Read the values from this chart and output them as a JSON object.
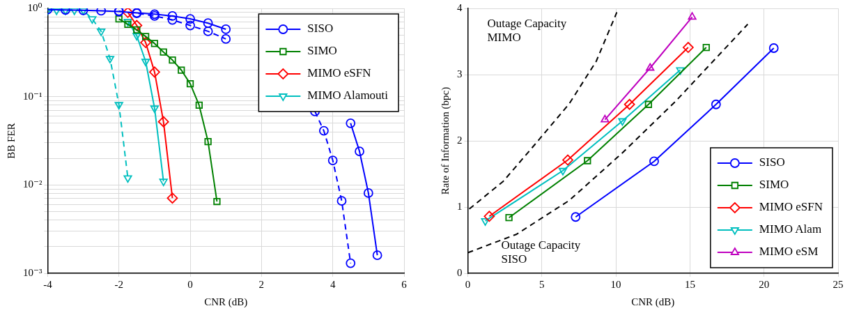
{
  "chart_data": [
    {
      "type": "line",
      "xlabel": "CNR (dB)",
      "ylabel": "BB FER",
      "log": "y",
      "grid": true,
      "legend": "top right",
      "xlim": [
        -4,
        6
      ],
      "ylim": [
        0.001,
        1
      ],
      "xticks": [
        -4,
        -2,
        0,
        2,
        4,
        6
      ],
      "yticks": [
        {
          "value": 0.001,
          "label": "10⁻³"
        },
        {
          "value": 0.002,
          "label": null
        },
        {
          "value": 0.003,
          "label": null
        },
        {
          "value": 0.004,
          "label": null
        },
        {
          "value": 0.005,
          "label": null
        },
        {
          "value": 0.006,
          "label": null
        },
        {
          "value": 0.007,
          "label": null
        },
        {
          "value": 0.008,
          "label": null
        },
        {
          "value": 0.009,
          "label": null
        },
        {
          "value": 0.01,
          "label": "10⁻²"
        },
        {
          "value": 0.02,
          "label": null
        },
        {
          "value": 0.03,
          "label": null
        },
        {
          "value": 0.04,
          "label": null
        },
        {
          "value": 0.05,
          "label": null
        },
        {
          "value": 0.06,
          "label": null
        },
        {
          "value": 0.07,
          "label": null
        },
        {
          "value": 0.08,
          "label": null
        },
        {
          "value": 0.09,
          "label": null
        },
        {
          "value": 0.1,
          "label": "10⁻¹"
        },
        {
          "value": 0.2,
          "label": null
        },
        {
          "value": 0.3,
          "label": null
        },
        {
          "value": 0.4,
          "label": null
        },
        {
          "value": 0.5,
          "label": null
        },
        {
          "value": 0.6,
          "label": null
        },
        {
          "value": 0.7,
          "label": null
        },
        {
          "value": 0.8,
          "label": null
        },
        {
          "value": 0.9,
          "label": null
        },
        {
          "value": 1,
          "label": "10⁰"
        }
      ],
      "series": [
        {
          "name": "SISO",
          "color": "#0000ff",
          "marker": "circle",
          "line_style": "solid",
          "x": [
            -4,
            -3.5,
            -3,
            -2.5,
            -2,
            -1.5,
            -1,
            -0.5,
            0,
            0.5,
            1,
            2,
            4.5,
            4.75,
            5,
            5.25
          ],
          "values": [
            0.97,
            0.96,
            0.95,
            0.94,
            0.92,
            0.89,
            0.86,
            0.82,
            0.76,
            0.68,
            0.58,
            null,
            0.05,
            0.024,
            0.0081,
            0.0016
          ]
        },
        {
          "name": "SIMO",
          "color": "#008000",
          "marker": "square",
          "line_style": "solid",
          "x": [
            -2,
            -1.75,
            -1.5,
            -1.25,
            -1,
            -0.75,
            -0.5,
            -0.25,
            0,
            0.25,
            0.5,
            0.75
          ],
          "values": [
            0.76,
            0.66,
            0.57,
            0.48,
            0.4,
            0.32,
            0.26,
            0.2,
            0.14,
            0.08,
            0.031,
            0.0065
          ]
        },
        {
          "name": "MIMO eSFN",
          "color": "#ff0000",
          "marker": "diamond",
          "line_style": "solid",
          "x": [
            -1.75,
            -1.5,
            -1.25,
            -1,
            -0.75,
            -0.5
          ],
          "values": [
            0.9,
            0.64,
            0.41,
            0.19,
            0.052,
            0.0071
          ]
        },
        {
          "name": "MIMO Alamouti",
          "color": "#00bfbf",
          "marker": "triangle_down",
          "line_style": "solid",
          "x": [
            -1.75,
            -1.5,
            -1.25,
            -1,
            -0.75
          ],
          "values": [
            0.71,
            0.49,
            0.25,
            0.074,
            0.011
          ]
        },
        {
          "color": "#0000ff",
          "marker": "circle",
          "line_style": "dashed",
          "x": [
            -2,
            -1.5,
            -1,
            -0.5,
            0,
            0.5,
            1,
            2,
            3.5,
            3.75,
            4,
            4.25,
            4.5
          ],
          "values": [
            0.93,
            0.88,
            0.82,
            0.74,
            0.64,
            0.55,
            0.45,
            null,
            0.068,
            0.041,
            0.019,
            0.0066,
            0.0013
          ]
        },
        {
          "color": "#00bfbf",
          "marker": "triangle_down",
          "line_style": "dashed",
          "x": [
            -4,
            -3.75,
            -3.5,
            -3.25,
            -3,
            -2.75,
            -2.5,
            -2.25,
            -2,
            -1.75
          ],
          "values": [
            0.95,
            0.95,
            0.95,
            0.95,
            0.95,
            0.76,
            0.55,
            0.27,
            0.081,
            0.012
          ]
        }
      ]
    },
    {
      "type": "line",
      "xlabel": "CNR (dB)",
      "ylabel": "Rate of Information (bpc)",
      "grid": true,
      "legend": "bottom right",
      "xlim": [
        0,
        25
      ],
      "ylim": [
        0,
        4
      ],
      "xticks": [
        0,
        5,
        10,
        15,
        20,
        25
      ],
      "yticks": [
        0,
        1,
        2,
        3,
        4
      ],
      "annotations": [
        "Outage Capacity MIMO",
        "Outage Capacity SISO"
      ],
      "series": [
        {
          "name": "SISO",
          "color": "#0000ff",
          "marker": "circle",
          "line_style": "solid",
          "x": [
            7.28,
            12.58,
            16.76,
            20.66
          ],
          "values": [
            0.85,
            1.69,
            2.55,
            3.4
          ]
        },
        {
          "name": "SIMO",
          "color": "#008000",
          "marker": "square",
          "line_style": "solid",
          "x": [
            2.78,
            8.08,
            12.2,
            16.1
          ],
          "values": [
            0.84,
            1.7,
            2.55,
            3.41
          ]
        },
        {
          "name": "MIMO eSFN",
          "color": "#ff0000",
          "marker": "diamond",
          "line_style": "solid",
          "x": [
            1.45,
            6.75,
            10.92,
            14.88
          ],
          "values": [
            0.86,
            1.71,
            2.55,
            3.41
          ]
        },
        {
          "name": "MIMO Alam",
          "color": "#00bfbf",
          "marker": "triangle_down",
          "line_style": "solid",
          "x": [
            1.18,
            6.42,
            10.44,
            14.35
          ],
          "values": [
            0.79,
            1.55,
            2.3,
            3.07
          ]
        },
        {
          "name": "MIMO eSM",
          "color": "#bf00bf",
          "marker": "triangle",
          "line_style": "solid",
          "x": [
            9.26,
            12.31,
            15.15
          ],
          "values": [
            2.32,
            3.1,
            3.87
          ]
        },
        {
          "color": "#000000",
          "marker": "none",
          "line_style": "dashed",
          "x": [
            0.1,
            2.4,
            4.55,
            6.85,
            8.67,
            10.06
          ],
          "values": [
            0.97,
            1.39,
            1.95,
            2.56,
            3.2,
            3.94
          ]
        },
        {
          "color": "#000000",
          "marker": "none",
          "line_style": "dashed",
          "x": [
            0,
            3.3,
            6.85,
            10.4,
            14,
            18.9
          ],
          "values": [
            0.31,
            0.59,
            1.1,
            1.81,
            2.59,
            3.76
          ]
        }
      ]
    }
  ]
}
